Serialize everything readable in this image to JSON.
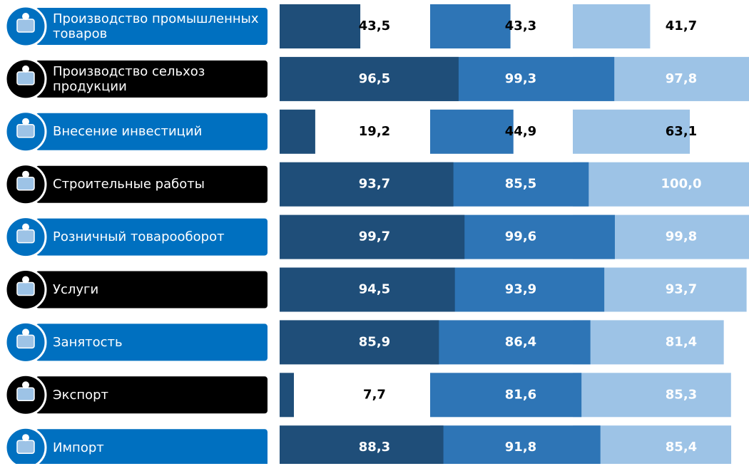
{
  "chart_data": {
    "type": "bar",
    "orientation": "horizontal",
    "categories": [
      "Производство промышленных товаров",
      "Производство сельхоз продукции",
      "Внесение инвестиций",
      "Строительные работы",
      "Розничный товарооборот",
      "Услуги",
      "Занятость",
      "Экспорт",
      "Импорт"
    ],
    "category_colors": [
      "#0070c0",
      "#000000",
      "#0070c0",
      "#000000",
      "#0070c0",
      "#000000",
      "#0070c0",
      "#000000",
      "#0070c0"
    ],
    "xlim": [
      0,
      100
    ],
    "series": [
      {
        "color": "#1f4e79",
        "values": [
          43.5,
          96.5,
          19.2,
          93.7,
          99.7,
          94.5,
          85.9,
          7.7,
          88.3
        ],
        "value_labels": [
          "43,5",
          "96,5",
          "19,2",
          "93,7",
          "99,7",
          "94,5",
          "85,9",
          "7,7",
          "88,3"
        ]
      },
      {
        "color": "#2e75b6",
        "values": [
          43.3,
          99.3,
          44.9,
          85.5,
          99.6,
          93.9,
          86.4,
          81.6,
          91.8
        ],
        "value_labels": [
          "43,3",
          "99,3",
          "44,9",
          "85,5",
          "99,6",
          "93,9",
          "86,4",
          "81,6",
          "91,8"
        ]
      },
      {
        "color": "#9dc3e6",
        "values": [
          41.7,
          97.8,
          63.1,
          100.0,
          99.8,
          93.7,
          81.4,
          85.3,
          85.4
        ],
        "value_labels": [
          "41,7",
          "97,8",
          "63,1",
          "100,0",
          "99,8",
          "93,7",
          "81,4",
          "85,3",
          "85,4"
        ]
      }
    ]
  }
}
